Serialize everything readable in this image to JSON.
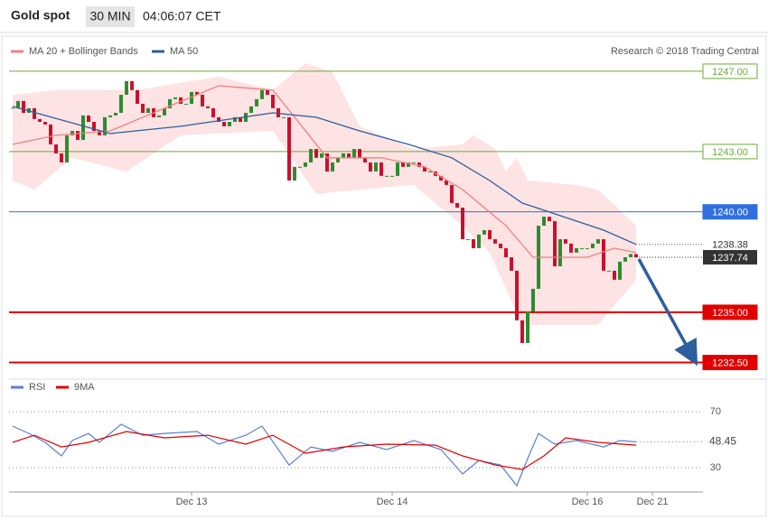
{
  "header": {
    "title": "Gold spot",
    "interval": "30 MIN",
    "time": "04:06:07 CET"
  },
  "copyright": "Research © 2018 Trading Central",
  "chart_data": [
    {
      "type": "candlestick",
      "up_color": "#2e8b2e",
      "down_color": "#c8102e",
      "xlim": [
        -0.67,
        127.33
      ],
      "ylim": [
        1231.67,
        1248.66
      ],
      "close": [
        1245.16,
        1245.52,
        1244.93,
        1245.16,
        1244.62,
        1244.48,
        1244.35,
        1243.36,
        1242.91,
        1242.46,
        1243.81,
        1244.03,
        1243.58,
        1244.8,
        1244.48,
        1244.03,
        1243.81,
        1244.71,
        1244.8,
        1244.93,
        1245.83,
        1246.51,
        1246.06,
        1245.38,
        1244.93,
        1245.16,
        1244.71,
        1244.8,
        1245.16,
        1245.61,
        1245.7,
        1245.38,
        1245.38,
        1245.97,
        1245.83,
        1245.25,
        1245.16,
        1244.71,
        1244.48,
        1244.26,
        1244.48,
        1244.71,
        1244.48,
        1244.93,
        1245.25,
        1245.61,
        1246.06,
        1245.83,
        1245.16,
        1244.71,
        1244.71,
        1241.56,
        1242.24,
        1242.24,
        1242.46,
        1243.13,
        1242.69,
        1242.91,
        1242.01,
        1242.46,
        1242.69,
        1242.91,
        1242.69,
        1243.13,
        1242.69,
        1242.46,
        1242.01,
        1242.46,
        1241.79,
        1241.79,
        1241.79,
        1242.46,
        1242.24,
        1242.46,
        1242.46,
        1242.24,
        1242.01,
        1242.01,
        1241.79,
        1241.56,
        1241.34,
        1240.44,
        1240.21,
        1238.64,
        1238.64,
        1238.19,
        1238.87,
        1239.09,
        1238.64,
        1238.42,
        1238.19,
        1237.74,
        1237.07,
        1234.6,
        1233.47,
        1235.04,
        1236.17,
        1239.31,
        1239.76,
        1239.54,
        1237.29,
        1238.64,
        1238.42,
        1237.97,
        1238.19,
        1238.19,
        1238.19,
        1238.42,
        1238.64,
        1237.07,
        1237.07,
        1236.62,
        1237.52,
        1237.74,
        1237.9,
        1237.74
      ],
      "series": [
        {
          "name": "MA 20 + Bollinger Bands",
          "color": "#f08080",
          "band_color": "#fde3e3",
          "x": [
            0,
            8,
            18,
            28,
            38,
            48,
            58,
            68,
            76,
            83,
            91,
            96,
            106,
            111,
            115
          ],
          "values": [
            1243.36,
            1243.81,
            1244.03,
            1245.16,
            1246.28,
            1246.06,
            1242.69,
            1242.69,
            1242.24,
            1241.11,
            1239.31,
            1237.74,
            1237.74,
            1238.19,
            1237.97
          ],
          "band_upper": {
            "x": [
              0,
              8,
              23,
              38,
              48,
              54,
              59,
              64,
              74,
              83,
              85,
              89,
              91,
              93,
              95,
              104,
              108,
              115
            ],
            "values": [
              1245.83,
              1246.06,
              1246.06,
              1246.73,
              1246.06,
              1247.4,
              1246.96,
              1244.26,
              1243.13,
              1243.36,
              1243.81,
              1243.13,
              1242.01,
              1242.69,
              1241.56,
              1241.34,
              1241.11,
              1239.31
            ]
          },
          "band_lower": {
            "x": [
              0,
              4,
              11,
              21,
              31,
              48,
              56,
              64,
              74,
              83,
              88,
              94,
              108,
              115
            ],
            "values": [
              1241.56,
              1241.11,
              1242.69,
              1242.01,
              1243.81,
              1244.03,
              1240.89,
              1241.11,
              1241.34,
              1239.31,
              1237.97,
              1234.37,
              1234.37,
              1236.62
            ]
          }
        },
        {
          "name": "MA 50",
          "color": "#2c5f9e",
          "x": [
            0,
            18,
            31,
            48,
            56,
            64,
            73,
            81,
            88,
            94,
            99,
            104,
            109,
            115
          ],
          "values": [
            1245.25,
            1243.9,
            1244.26,
            1244.93,
            1244.71,
            1244.03,
            1243.36,
            1242.69,
            1241.56,
            1240.44,
            1239.99,
            1239.54,
            1239.09,
            1238.38
          ]
        }
      ],
      "levels": [
        {
          "value": 1247,
          "label": "1247.00",
          "color": "#6aab3c",
          "style": "outline"
        },
        {
          "value": 1243,
          "label": "1243.00",
          "color": "#6aab3c",
          "style": "outline"
        },
        {
          "value": 1240,
          "label": "1240.00",
          "color": "#2f6fe0",
          "style": "filled"
        },
        {
          "value": 1235,
          "label": "1235.00",
          "color": "#e00000",
          "style": "filled"
        },
        {
          "value": 1232.5,
          "label": "1232.50",
          "color": "#e00000",
          "style": "filled"
        }
      ]
    },
    {
      "type": "line",
      "xlim": [
        -0.67,
        127.33
      ],
      "ylim": [
        12.6,
        85.5
      ],
      "yticks": [
        70,
        30
      ],
      "xticks": [
        {
          "value": 33,
          "label": "Dec 13"
        },
        {
          "value": 70,
          "label": "Dec 14"
        },
        {
          "value": 106,
          "label": "Dec 16"
        },
        {
          "value": 118,
          "label": "Dec 21"
        }
      ],
      "series": [
        {
          "name": "RSI",
          "color": "#5b7fd6",
          "x": [
            0,
            3,
            6,
            9,
            11,
            14,
            16,
            20,
            24,
            28,
            34,
            38,
            43,
            46,
            51,
            55,
            59,
            64,
            69,
            74,
            79,
            83,
            86,
            90,
            93,
            95,
            97,
            100,
            104,
            109,
            112,
            115
          ],
          "values": [
            59.7,
            54.5,
            48.1,
            38.4,
            49.4,
            54.5,
            48.1,
            61,
            53.2,
            54.5,
            55.8,
            46.8,
            53.2,
            59.7,
            31.9,
            44.8,
            41.6,
            48.1,
            42.9,
            49.4,
            42.9,
            25.5,
            35.2,
            31.9,
            17.1,
            36.5,
            54.5,
            46.8,
            49.4,
            44.8,
            49.4,
            48.45
          ]
        },
        {
          "name": "9MA",
          "color": "#e00000",
          "x": [
            0,
            4,
            9,
            14,
            21,
            28,
            36,
            43,
            48,
            54,
            61,
            69,
            78,
            83,
            89,
            94,
            98,
            102,
            108,
            115
          ],
          "values": [
            48.1,
            53.2,
            44.8,
            48.1,
            55.8,
            51.3,
            53.2,
            46.8,
            53.2,
            40.3,
            44.8,
            46.8,
            46.1,
            38.4,
            31.9,
            28.7,
            38.4,
            51.3,
            48.1,
            46.1
          ]
        }
      ]
    }
  ]
}
